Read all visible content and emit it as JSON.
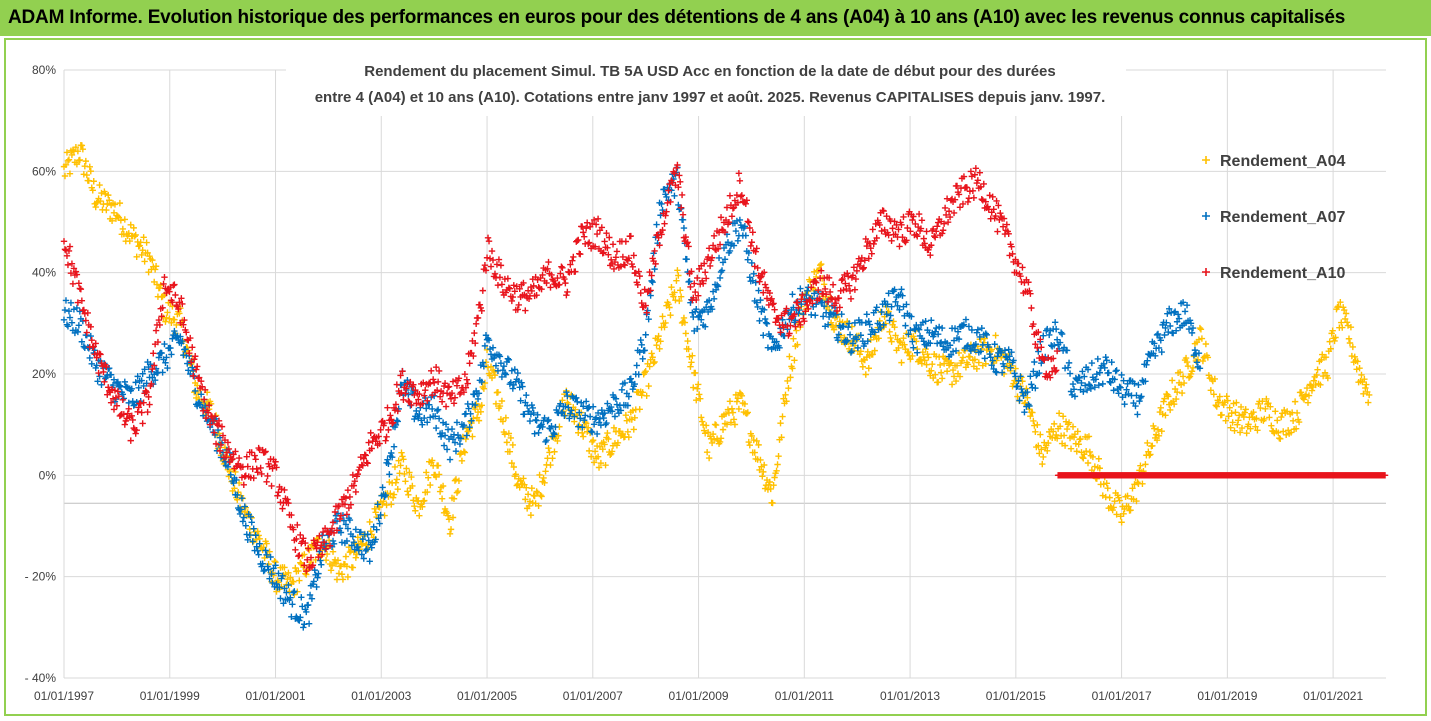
{
  "header": {
    "text": "ADAM Informe. Evolution historique des performances en euros pour des détentions de 4 ans (A04) à 10 ans (A10) avec les revenus connus capitalisés"
  },
  "colors": {
    "header_bg": "#92d050",
    "A04": "#ffc000",
    "A07": "#0070c0",
    "A10": "#e8141c",
    "grid": "#d9d9d9",
    "text": "#404040"
  },
  "chart_data": {
    "type": "scatter",
    "title_lines": [
      "Rendement du placement Simul. TB 5A USD Acc en fonction de la date de début pour des durées",
      "entre 4 (A04) et 10 ans (A10). Cotations entre janv 1997 et août. 2025. Revenus CAPITALISES depuis janv. 1997."
    ],
    "xlabel": "",
    "ylabel": "",
    "x_ticks": [
      "01/01/1997",
      "01/01/1999",
      "01/01/2001",
      "01/01/2003",
      "01/01/2005",
      "01/01/2007",
      "01/01/2009",
      "01/01/2011",
      "01/01/2013",
      "01/01/2015",
      "01/01/2017",
      "01/01/2019",
      "01/01/2021"
    ],
    "y_ticks": [
      "80%",
      "60%",
      "40%",
      "20%",
      "0%",
      "- 20%",
      "- 40%"
    ],
    "xlim": [
      1997.0,
      2022.0
    ],
    "ylim": [
      -40,
      80
    ],
    "grid": true,
    "legend_position": "right",
    "series": [
      {
        "name": "Rendement_A04",
        "color_key": "A04",
        "points": [
          [
            1997.0,
            60
          ],
          [
            1997.3,
            64
          ],
          [
            1997.6,
            55
          ],
          [
            1998.0,
            52
          ],
          [
            1998.3,
            47
          ],
          [
            1998.6,
            43
          ],
          [
            1998.9,
            33
          ],
          [
            1999.2,
            30
          ],
          [
            1999.5,
            17
          ],
          [
            1999.8,
            12
          ],
          [
            2000.1,
            2
          ],
          [
            2000.4,
            -7
          ],
          [
            2000.7,
            -13
          ],
          [
            2001.0,
            -20
          ],
          [
            2001.3,
            -22
          ],
          [
            2001.6,
            -17
          ],
          [
            2001.9,
            -13
          ],
          [
            2002.2,
            -19
          ],
          [
            2002.5,
            -16
          ],
          [
            2002.8,
            -11
          ],
          [
            2003.1,
            -5
          ],
          [
            2003.4,
            2
          ],
          [
            2003.7,
            -6
          ],
          [
            2004.0,
            3
          ],
          [
            2004.3,
            -9
          ],
          [
            2004.6,
            8
          ],
          [
            2004.9,
            14
          ],
          [
            2005.0,
            22
          ],
          [
            2005.3,
            12
          ],
          [
            2005.6,
            -2
          ],
          [
            2005.9,
            -6
          ],
          [
            2006.2,
            5
          ],
          [
            2006.5,
            15
          ],
          [
            2006.8,
            10
          ],
          [
            2007.1,
            3
          ],
          [
            2007.4,
            7
          ],
          [
            2007.7,
            10
          ],
          [
            2008.0,
            18
          ],
          [
            2008.3,
            28
          ],
          [
            2008.6,
            38
          ],
          [
            2008.9,
            20
          ],
          [
            2009.2,
            5
          ],
          [
            2009.5,
            11
          ],
          [
            2009.8,
            14
          ],
          [
            2010.1,
            5
          ],
          [
            2010.4,
            -4
          ],
          [
            2010.7,
            20
          ],
          [
            2011.0,
            35
          ],
          [
            2011.3,
            40
          ],
          [
            2011.6,
            30
          ],
          [
            2011.9,
            27
          ],
          [
            2012.2,
            22
          ],
          [
            2012.5,
            32
          ],
          [
            2012.8,
            25
          ],
          [
            2013.1,
            26
          ],
          [
            2013.4,
            22
          ],
          [
            2013.7,
            20
          ],
          [
            2014.0,
            22
          ],
          [
            2014.3,
            24
          ],
          [
            2014.6,
            25
          ],
          [
            2014.9,
            21
          ],
          [
            2015.2,
            15
          ],
          [
            2015.5,
            4
          ],
          [
            2015.8,
            10
          ],
          [
            2016.1,
            7
          ],
          [
            2016.4,
            5
          ],
          [
            2016.7,
            -3
          ],
          [
            2017.0,
            -8
          ],
          [
            2017.3,
            -2
          ],
          [
            2017.6,
            7
          ],
          [
            2017.9,
            15
          ],
          [
            2018.2,
            20
          ],
          [
            2018.5,
            27
          ],
          [
            2018.8,
            15
          ],
          [
            2019.1,
            12
          ],
          [
            2019.4,
            10
          ],
          [
            2019.7,
            13
          ],
          [
            2020.0,
            10
          ],
          [
            2020.3,
            12
          ],
          [
            2020.6,
            19
          ],
          [
            2020.9,
            22
          ],
          [
            2021.1,
            32
          ],
          [
            2021.3,
            28
          ],
          [
            2021.5,
            20
          ],
          [
            2021.7,
            16
          ]
        ]
      },
      {
        "name": "Rendement_A07",
        "color_key": "A07",
        "points": [
          [
            1997.0,
            32
          ],
          [
            1997.3,
            30
          ],
          [
            1997.6,
            22
          ],
          [
            1998.0,
            17
          ],
          [
            1998.3,
            15
          ],
          [
            1998.6,
            20
          ],
          [
            1998.9,
            23
          ],
          [
            1999.2,
            27
          ],
          [
            1999.5,
            17
          ],
          [
            1999.8,
            10
          ],
          [
            2000.1,
            3
          ],
          [
            2000.4,
            -8
          ],
          [
            2000.7,
            -15
          ],
          [
            2001.0,
            -20
          ],
          [
            2001.3,
            -25
          ],
          [
            2001.6,
            -28
          ],
          [
            2001.9,
            -14
          ],
          [
            2002.2,
            -10
          ],
          [
            2002.5,
            -12
          ],
          [
            2002.8,
            -15
          ],
          [
            2003.1,
            0
          ],
          [
            2003.4,
            18
          ],
          [
            2003.7,
            12
          ],
          [
            2004.0,
            13
          ],
          [
            2004.3,
            6
          ],
          [
            2004.6,
            10
          ],
          [
            2004.9,
            20
          ],
          [
            2005.0,
            27
          ],
          [
            2005.3,
            22
          ],
          [
            2005.6,
            17
          ],
          [
            2005.9,
            10
          ],
          [
            2006.2,
            9
          ],
          [
            2006.5,
            14
          ],
          [
            2006.8,
            12
          ],
          [
            2007.1,
            11
          ],
          [
            2007.4,
            14
          ],
          [
            2007.7,
            16
          ],
          [
            2008.0,
            28
          ],
          [
            2008.3,
            55
          ],
          [
            2008.6,
            58
          ],
          [
            2008.9,
            30
          ],
          [
            2009.2,
            33
          ],
          [
            2009.5,
            45
          ],
          [
            2009.8,
            50
          ],
          [
            2010.1,
            35
          ],
          [
            2010.4,
            24
          ],
          [
            2010.7,
            32
          ],
          [
            2011.0,
            35
          ],
          [
            2011.3,
            33
          ],
          [
            2011.6,
            30
          ],
          [
            2011.9,
            27
          ],
          [
            2012.2,
            29
          ],
          [
            2012.5,
            32
          ],
          [
            2012.8,
            35
          ],
          [
            2013.1,
            27
          ],
          [
            2013.4,
            28
          ],
          [
            2013.7,
            26
          ],
          [
            2014.0,
            28
          ],
          [
            2014.3,
            27
          ],
          [
            2014.6,
            23
          ],
          [
            2014.9,
            22
          ],
          [
            2015.2,
            14
          ],
          [
            2015.5,
            25
          ],
          [
            2015.8,
            28
          ],
          [
            2016.1,
            17
          ],
          [
            2016.4,
            19
          ],
          [
            2016.7,
            21
          ],
          [
            2017.0,
            17
          ],
          [
            2017.3,
            15
          ],
          [
            2017.6,
            24
          ],
          [
            2017.9,
            30
          ],
          [
            2018.2,
            32
          ],
          [
            2018.5,
            22
          ]
        ]
      },
      {
        "name": "Rendement_A10",
        "color_key": "A10",
        "points": [
          [
            1997.0,
            47
          ],
          [
            1997.3,
            35
          ],
          [
            1997.6,
            24
          ],
          [
            1998.0,
            14
          ],
          [
            1998.3,
            9
          ],
          [
            1998.6,
            15
          ],
          [
            1998.9,
            38
          ],
          [
            1999.2,
            33
          ],
          [
            1999.5,
            20
          ],
          [
            1999.8,
            10
          ],
          [
            2000.1,
            5
          ],
          [
            2000.4,
            1
          ],
          [
            2000.7,
            3
          ],
          [
            2001.0,
            0
          ],
          [
            2001.3,
            -10
          ],
          [
            2001.6,
            -17
          ],
          [
            2001.9,
            -14
          ],
          [
            2002.2,
            -8
          ],
          [
            2002.5,
            -2
          ],
          [
            2002.8,
            6
          ],
          [
            2003.1,
            10
          ],
          [
            2003.4,
            18
          ],
          [
            2003.7,
            16
          ],
          [
            2004.0,
            19
          ],
          [
            2004.3,
            15
          ],
          [
            2004.6,
            18
          ],
          [
            2004.9,
            35
          ],
          [
            2005.0,
            45
          ],
          [
            2005.3,
            38
          ],
          [
            2005.6,
            35
          ],
          [
            2005.9,
            36
          ],
          [
            2006.2,
            40
          ],
          [
            2006.5,
            38
          ],
          [
            2006.8,
            47
          ],
          [
            2007.1,
            48
          ],
          [
            2007.4,
            43
          ],
          [
            2007.7,
            45
          ],
          [
            2008.0,
            33
          ],
          [
            2008.3,
            50
          ],
          [
            2008.6,
            60
          ],
          [
            2008.9,
            35
          ],
          [
            2009.2,
            43
          ],
          [
            2009.5,
            50
          ],
          [
            2009.8,
            58
          ],
          [
            2010.1,
            42
          ],
          [
            2010.4,
            32
          ],
          [
            2010.7,
            30
          ],
          [
            2011.0,
            33
          ],
          [
            2011.3,
            38
          ],
          [
            2011.6,
            35
          ],
          [
            2011.9,
            38
          ],
          [
            2012.2,
            45
          ],
          [
            2012.5,
            50
          ],
          [
            2012.8,
            48
          ],
          [
            2013.1,
            50
          ],
          [
            2013.4,
            45
          ],
          [
            2013.7,
            52
          ],
          [
            2014.0,
            56
          ],
          [
            2014.3,
            58
          ],
          [
            2014.6,
            52
          ],
          [
            2014.9,
            45
          ],
          [
            2015.2,
            37
          ],
          [
            2015.5,
            22
          ],
          [
            2015.8,
            22
          ],
          [
            2015.8,
            0
          ],
          [
            2016.5,
            0
          ],
          [
            2017.2,
            0
          ],
          [
            2017.9,
            0
          ],
          [
            2018.6,
            0
          ],
          [
            2019.3,
            0
          ],
          [
            2020.0,
            0
          ],
          [
            2020.7,
            0
          ],
          [
            2021.4,
            0
          ],
          [
            2022.0,
            0
          ]
        ]
      }
    ]
  }
}
